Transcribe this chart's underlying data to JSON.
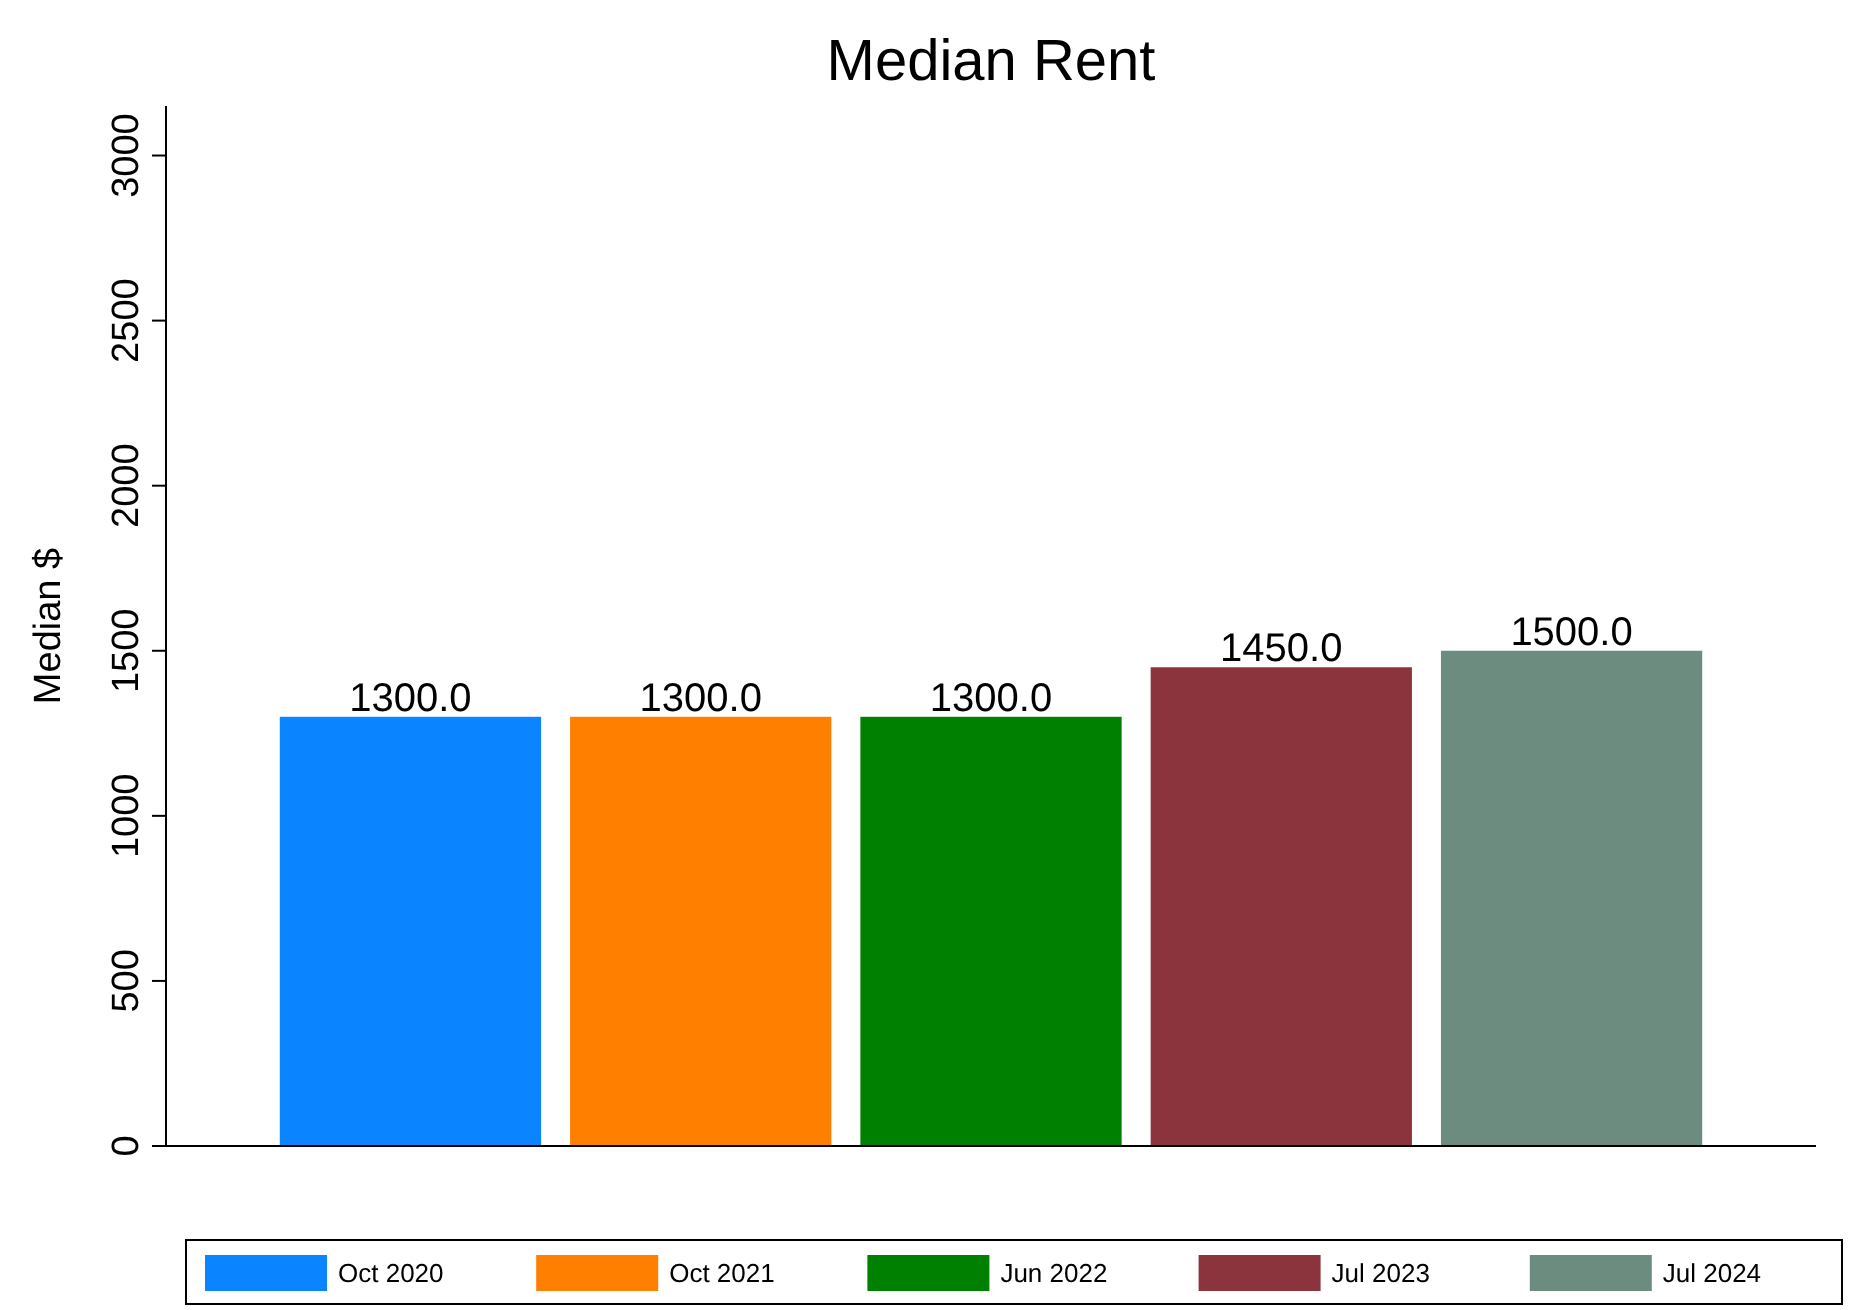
{
  "chart_data": {
    "type": "bar",
    "title": "Median Rent",
    "ylabel": "Median $",
    "categories": [
      null
    ],
    "series": [
      {
        "name": "Oct 2020",
        "color": "#0a84ff",
        "values": [
          1300
        ],
        "value_labels": [
          "1300.0"
        ]
      },
      {
        "name": "Oct 2021",
        "color": "#ff7f00",
        "values": [
          1300
        ],
        "value_labels": [
          "1300.0"
        ]
      },
      {
        "name": "Jun 2022",
        "color": "#008000",
        "values": [
          1300
        ],
        "value_labels": [
          "1300.0"
        ]
      },
      {
        "name": "Jul 2023",
        "color": "#8b343d",
        "values": [
          1450
        ],
        "value_labels": [
          "1450.0"
        ]
      },
      {
        "name": "Jul 2024",
        "color": "#6b8c7f",
        "values": [
          1500
        ],
        "value_labels": [
          "1500.0"
        ]
      }
    ],
    "ylim": [
      0,
      3150
    ],
    "yticks": [
      0,
      500,
      1000,
      1500,
      2000,
      2500,
      3000
    ],
    "grid": false,
    "legend": "bottom"
  }
}
